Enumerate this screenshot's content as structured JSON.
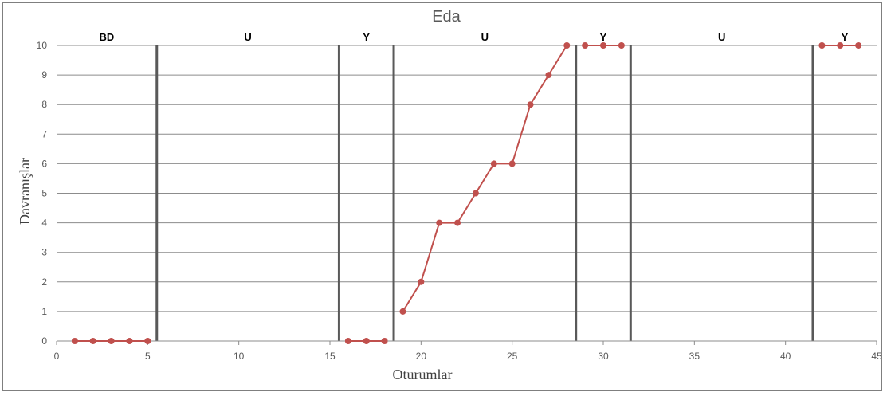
{
  "chart_data": {
    "type": "line",
    "title": "Eda",
    "xlabel": "Oturumlar",
    "ylabel": "Davranışlar",
    "xlim": [
      0,
      45
    ],
    "ylim": [
      0,
      10
    ],
    "x_ticks": [
      0,
      5,
      10,
      15,
      20,
      25,
      30,
      35,
      40,
      45
    ],
    "y_ticks": [
      0,
      1,
      2,
      3,
      4,
      5,
      6,
      7,
      8,
      9,
      10
    ],
    "grid": "horizontal",
    "series_color": "#c0504d",
    "phases": [
      {
        "label": "BD",
        "start": 0,
        "end": 5.5
      },
      {
        "label": "U",
        "start": 5.5,
        "end": 15.5
      },
      {
        "label": "Y",
        "start": 15.5,
        "end": 18.5
      },
      {
        "label": "U",
        "start": 18.5,
        "end": 28.5
      },
      {
        "label": "Y",
        "start": 28.5,
        "end": 31.5
      },
      {
        "label": "U",
        "start": 31.5,
        "end": 41.5
      },
      {
        "label": "Y",
        "start": 41.5,
        "end": 45
      }
    ],
    "phase_change_lines": [
      5.5,
      15.5,
      18.5,
      28.5,
      31.5,
      41.5
    ],
    "segments": [
      {
        "x": [
          1,
          2,
          3,
          4,
          5
        ],
        "y": [
          0,
          0,
          0,
          0,
          0
        ]
      },
      {
        "x": [
          16,
          17,
          18
        ],
        "y": [
          0,
          0,
          0
        ]
      },
      {
        "x": [
          19,
          20,
          21,
          22,
          23,
          24,
          25,
          26,
          27,
          28
        ],
        "y": [
          1,
          2,
          4,
          4,
          5,
          6,
          6,
          8,
          9,
          10
        ]
      },
      {
        "x": [
          29,
          30,
          31
        ],
        "y": [
          10,
          10,
          10
        ]
      },
      {
        "x": [
          42,
          43,
          44
        ],
        "y": [
          10,
          10,
          10
        ]
      }
    ]
  }
}
